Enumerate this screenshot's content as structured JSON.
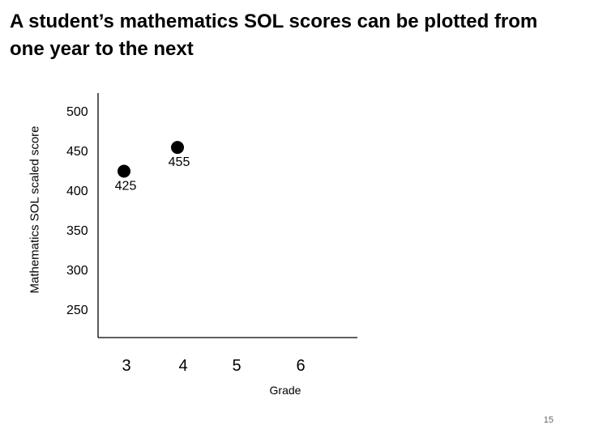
{
  "slide": {
    "title": "A student’s mathematics SOL scores can be plotted from one year to the next",
    "page_number": "15"
  },
  "chart_data": {
    "type": "scatter",
    "xlabel": "Grade",
    "ylabel": "Mathematics SOL scaled score",
    "x_categories": [
      "3",
      "4",
      "5",
      "6"
    ],
    "y_ticks": [
      "500",
      "450",
      "400",
      "350",
      "300",
      "250"
    ],
    "ylim": [
      250,
      500
    ],
    "grid": false,
    "points": [
      {
        "x": "3",
        "y": 425,
        "label": "425"
      },
      {
        "x": "4",
        "y": 455,
        "label": "455"
      }
    ],
    "colors": {
      "marker": "#000000",
      "axis": "#000000"
    }
  }
}
